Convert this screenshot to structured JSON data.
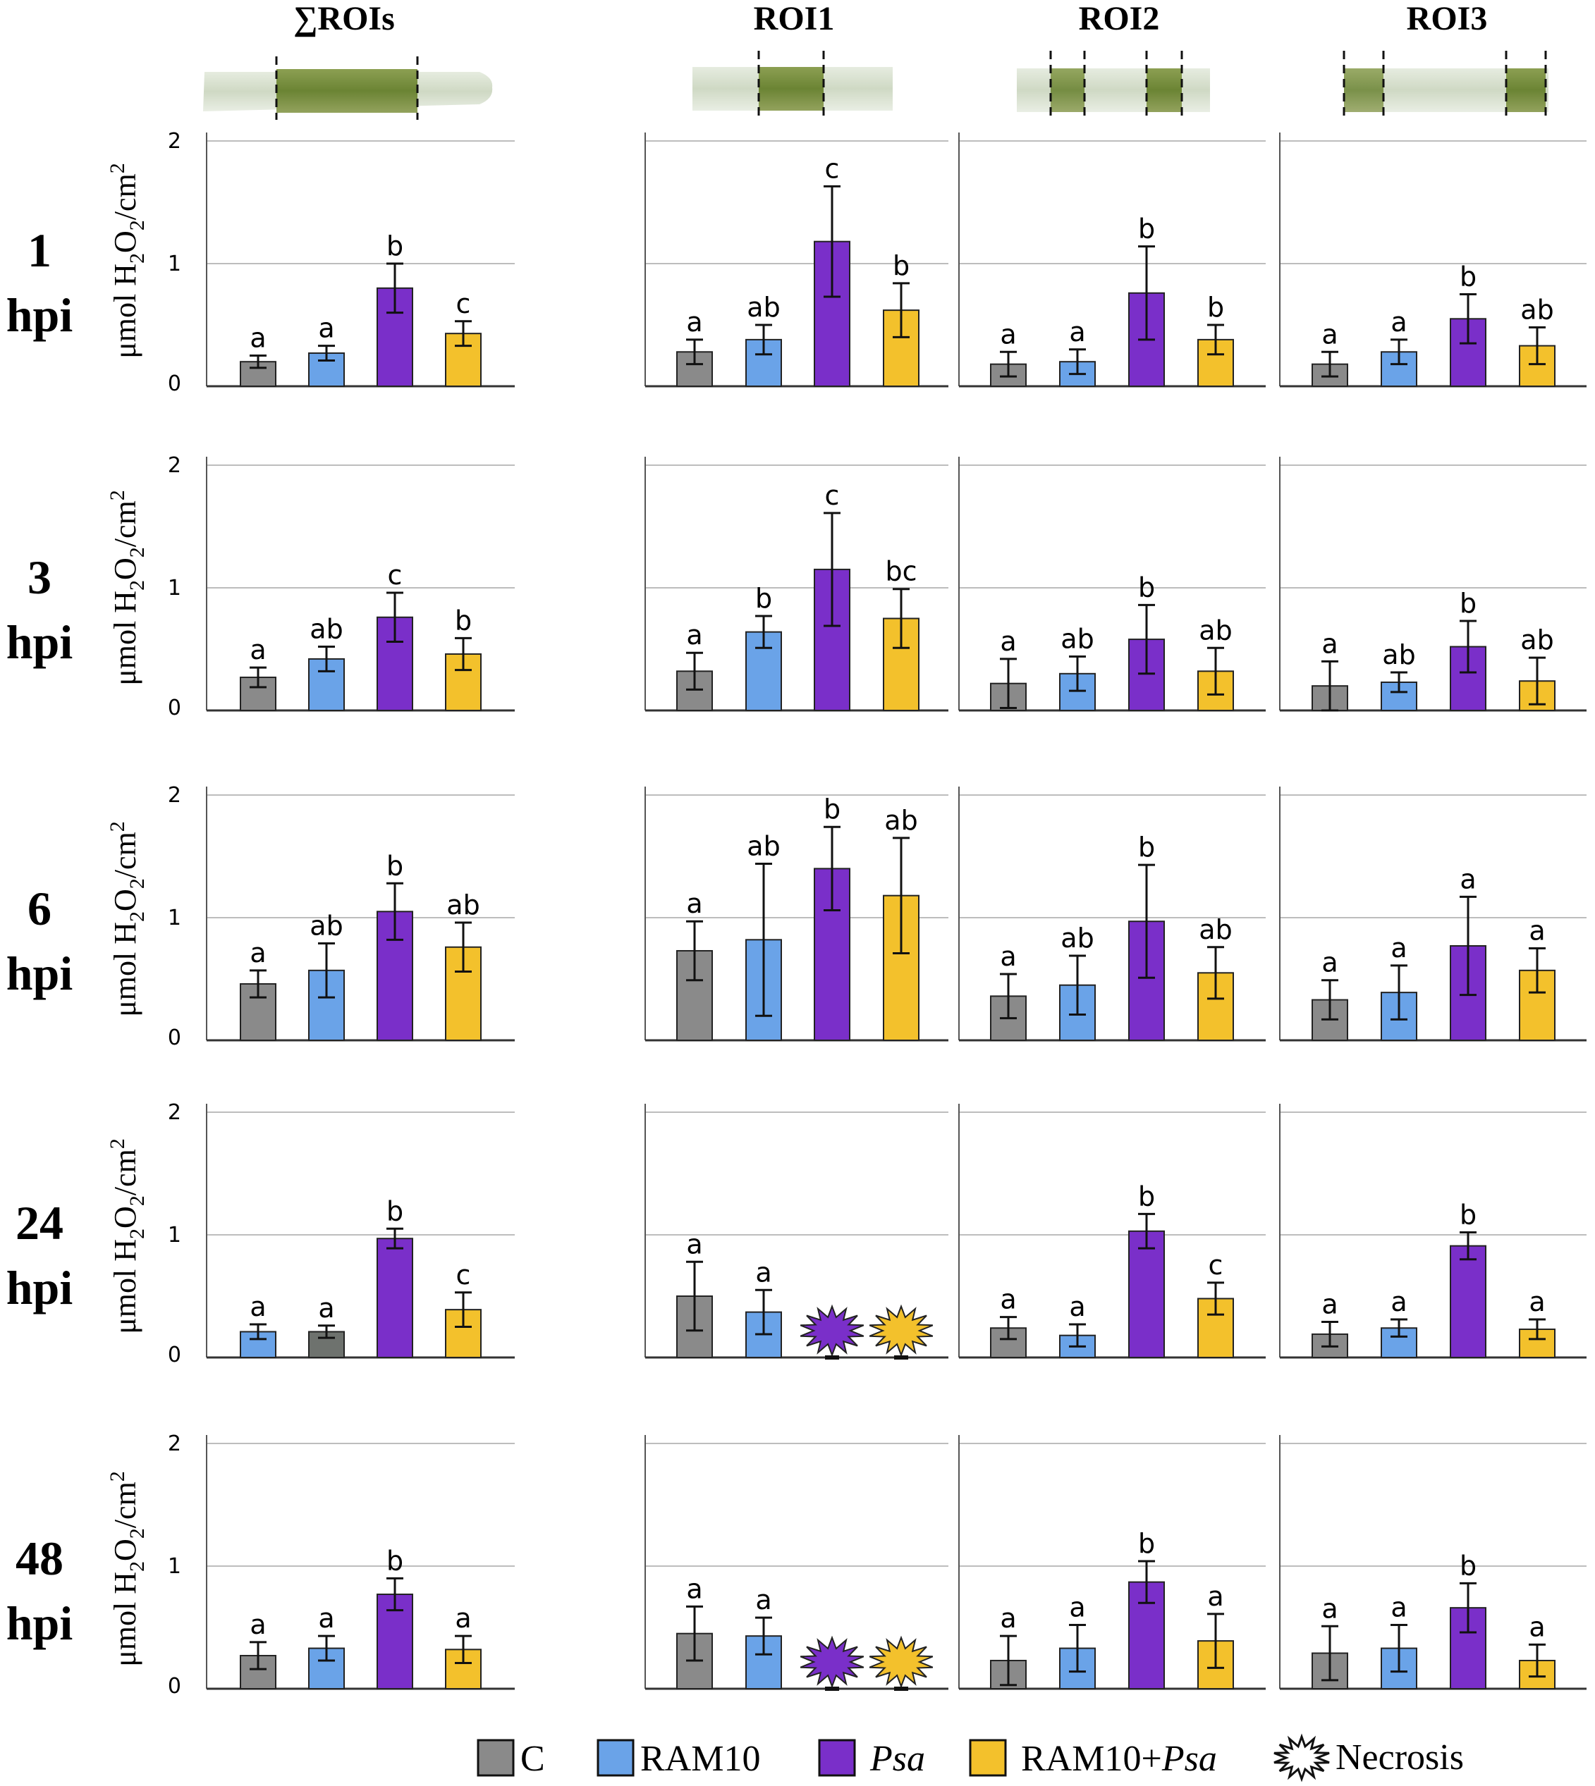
{
  "figure": {
    "column_headers": [
      "∑ROIs",
      "ROI1",
      "ROI2",
      "ROI3"
    ],
    "row_time_labels": [
      "1",
      "3",
      "6",
      "24",
      "48"
    ],
    "row_unit_label": "hpi",
    "y_axis_label": {
      "prefix": "μmol H",
      "sub1": "2",
      "mid": "O",
      "sub2": "2",
      "tail": "/cm",
      "sup": "2"
    }
  },
  "legend": {
    "items": [
      {
        "label": "C",
        "italic": false,
        "color": "#8a8a8a"
      },
      {
        "label": "RAM10",
        "italic": false,
        "color": "#6aa3e8"
      },
      {
        "label": "Psa",
        "italic": true,
        "color": "#7a2fc9"
      },
      {
        "label_plain": "RAM10+",
        "label_italic": "Psa",
        "color": "#f3c12c"
      },
      {
        "label": "Necrosis",
        "italic": false,
        "color": "#ffffff",
        "icon": "necrosis-star-icon"
      }
    ]
  },
  "chart_data": {
    "type": "bar",
    "categories": [
      "C",
      "RAM10",
      "Psa",
      "RAM10+Psa"
    ],
    "ylim": [
      0,
      2
    ],
    "yticks": [
      0,
      1,
      2
    ],
    "ylabel": "μmol H2O2/cm2",
    "series_colors": {
      "C": "#8a8a8a",
      "RAM10": "#6aa3e8",
      "Psa": "#7a2fc9",
      "RAM10+Psa": "#f3c12c",
      "RAM10_swapped": "#6aa3e8",
      "C_swapped": "#6e726e"
    },
    "panels": [
      {
        "row": "1 hpi",
        "col": "∑ROIs",
        "values": [
          0.2,
          0.27,
          0.8,
          0.43
        ],
        "errors": [
          0.05,
          0.06,
          0.2,
          0.1
        ],
        "letters": [
          "a",
          "a",
          "b",
          "c"
        ]
      },
      {
        "row": "1 hpi",
        "col": "ROI1",
        "values": [
          0.28,
          0.38,
          1.18,
          0.62
        ],
        "errors": [
          0.1,
          0.12,
          0.45,
          0.22
        ],
        "letters": [
          "a",
          "ab",
          "c",
          "b"
        ]
      },
      {
        "row": "1 hpi",
        "col": "ROI2",
        "values": [
          0.18,
          0.2,
          0.76,
          0.38
        ],
        "errors": [
          0.1,
          0.1,
          0.38,
          0.12
        ],
        "letters": [
          "a",
          "a",
          "b",
          "b"
        ]
      },
      {
        "row": "1 hpi",
        "col": "ROI3",
        "values": [
          0.18,
          0.28,
          0.55,
          0.33
        ],
        "errors": [
          0.1,
          0.1,
          0.2,
          0.15
        ],
        "letters": [
          "a",
          "a",
          "b",
          "ab"
        ]
      },
      {
        "row": "3 hpi",
        "col": "∑ROIs",
        "values": [
          0.27,
          0.42,
          0.76,
          0.46
        ],
        "errors": [
          0.08,
          0.1,
          0.2,
          0.13
        ],
        "letters": [
          "a",
          "ab",
          "c",
          "b"
        ]
      },
      {
        "row": "3 hpi",
        "col": "ROI1",
        "values": [
          0.32,
          0.64,
          1.15,
          0.75
        ],
        "errors": [
          0.15,
          0.13,
          0.46,
          0.24
        ],
        "letters": [
          "a",
          "b",
          "c",
          "bc"
        ]
      },
      {
        "row": "3 hpi",
        "col": "ROI2",
        "values": [
          0.22,
          0.3,
          0.58,
          0.32
        ],
        "errors": [
          0.2,
          0.14,
          0.28,
          0.19
        ],
        "letters": [
          "a",
          "ab",
          "b",
          "ab"
        ]
      },
      {
        "row": "3 hpi",
        "col": "ROI3",
        "values": [
          0.2,
          0.23,
          0.52,
          0.24
        ],
        "errors": [
          0.2,
          0.08,
          0.21,
          0.19
        ],
        "letters": [
          "a",
          "ab",
          "b",
          "ab"
        ]
      },
      {
        "row": "6 hpi",
        "col": "∑ROIs",
        "values": [
          0.46,
          0.57,
          1.05,
          0.76
        ],
        "errors": [
          0.11,
          0.22,
          0.23,
          0.2
        ],
        "letters": [
          "a",
          "ab",
          "b",
          "ab"
        ]
      },
      {
        "row": "6 hpi",
        "col": "ROI1",
        "values": [
          0.73,
          0.82,
          1.4,
          1.18
        ],
        "errors": [
          0.24,
          0.62,
          0.34,
          0.47
        ],
        "letters": [
          "a",
          "ab",
          "b",
          "ab"
        ]
      },
      {
        "row": "6 hpi",
        "col": "ROI2",
        "values": [
          0.36,
          0.45,
          0.97,
          0.55
        ],
        "errors": [
          0.18,
          0.24,
          0.46,
          0.21
        ],
        "letters": [
          "a",
          "ab",
          "b",
          "ab"
        ]
      },
      {
        "row": "6 hpi",
        "col": "ROI3",
        "values": [
          0.33,
          0.39,
          0.77,
          0.57
        ],
        "errors": [
          0.16,
          0.22,
          0.4,
          0.18
        ],
        "letters": [
          "a",
          "a",
          "a",
          "a"
        ]
      },
      {
        "row": "24 hpi",
        "col": "∑ROIs",
        "values": [
          0.21,
          0.21,
          0.97,
          0.39
        ],
        "errors": [
          0.06,
          0.05,
          0.08,
          0.14
        ],
        "letters": [
          "a",
          "a",
          "b",
          "c"
        ],
        "swapped_colors": true
      },
      {
        "row": "24 hpi",
        "col": "ROI1",
        "values": [
          0.5,
          0.37,
          null,
          null
        ],
        "errors": [
          0.28,
          0.18,
          null,
          null
        ],
        "letters": [
          "a",
          "a",
          "",
          ""
        ],
        "necrosis": [
          false,
          false,
          true,
          true
        ]
      },
      {
        "row": "24 hpi",
        "col": "ROI2",
        "values": [
          0.24,
          0.18,
          1.03,
          0.48
        ],
        "errors": [
          0.09,
          0.09,
          0.14,
          0.13
        ],
        "letters": [
          "a",
          "a",
          "b",
          "c"
        ]
      },
      {
        "row": "24 hpi",
        "col": "ROI3",
        "values": [
          0.19,
          0.24,
          0.91,
          0.23
        ],
        "errors": [
          0.1,
          0.07,
          0.11,
          0.08
        ],
        "letters": [
          "a",
          "a",
          "b",
          "a"
        ]
      },
      {
        "row": "48 hpi",
        "col": "∑ROIs",
        "values": [
          0.27,
          0.33,
          0.77,
          0.32
        ],
        "errors": [
          0.11,
          0.1,
          0.13,
          0.11
        ],
        "letters": [
          "a",
          "a",
          "b",
          "a"
        ]
      },
      {
        "row": "48 hpi",
        "col": "ROI1",
        "values": [
          0.45,
          0.43,
          null,
          null
        ],
        "errors": [
          0.22,
          0.15,
          null,
          null
        ],
        "letters": [
          "a",
          "a",
          "",
          ""
        ],
        "necrosis": [
          false,
          false,
          true,
          true
        ]
      },
      {
        "row": "48 hpi",
        "col": "ROI2",
        "values": [
          0.23,
          0.33,
          0.87,
          0.39
        ],
        "errors": [
          0.2,
          0.19,
          0.17,
          0.22
        ],
        "letters": [
          "a",
          "a",
          "b",
          "a"
        ]
      },
      {
        "row": "48 hpi",
        "col": "ROI3",
        "values": [
          0.29,
          0.33,
          0.66,
          0.23
        ],
        "errors": [
          0.22,
          0.19,
          0.2,
          0.13
        ],
        "letters": [
          "a",
          "a",
          "b",
          "a"
        ]
      }
    ]
  }
}
